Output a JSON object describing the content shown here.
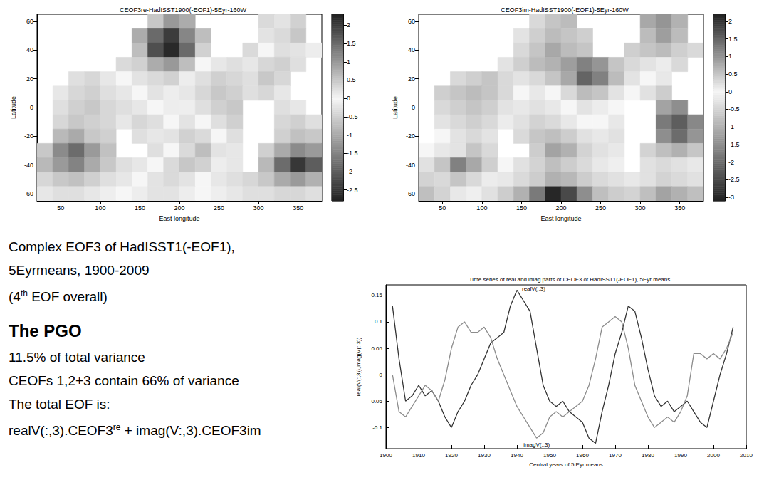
{
  "chart_data": [
    {
      "type": "heatmap",
      "title": "CEOF3re-HadISST1900(-EOF1)-5Eyr-160W",
      "xlabel": "East longitude",
      "ylabel": "Latitude",
      "x": [
        30,
        50,
        70,
        90,
        110,
        130,
        150,
        170,
        190,
        210,
        230,
        250,
        270,
        290,
        310,
        330,
        350,
        370
      ],
      "y": [
        60,
        50,
        40,
        30,
        20,
        10,
        0,
        -10,
        -20,
        -30,
        -40,
        -50,
        -60
      ],
      "cells": [
        [
          null,
          null,
          null,
          null,
          null,
          null,
          null,
          0.5,
          1.0,
          0.8,
          null,
          null,
          null,
          null,
          0.3,
          0.2,
          0.4,
          null
        ],
        [
          null,
          null,
          null,
          null,
          null,
          null,
          0.8,
          1.5,
          2.0,
          1.2,
          0.6,
          null,
          null,
          null,
          0.2,
          0.3,
          0.5,
          null
        ],
        [
          null,
          null,
          null,
          null,
          null,
          null,
          0.6,
          1.8,
          2.2,
          1.5,
          0.4,
          null,
          null,
          0.3,
          0.0,
          -0.3,
          0.2,
          0.1
        ],
        [
          null,
          null,
          null,
          null,
          null,
          0.3,
          0.4,
          0.8,
          1.0,
          0.6,
          0.0,
          -0.2,
          -0.3,
          -0.2,
          -0.4,
          -0.5,
          -0.3,
          null
        ],
        [
          null,
          null,
          -0.3,
          -0.4,
          -0.2,
          0.0,
          0.2,
          0.3,
          0.4,
          0.1,
          -0.3,
          -0.5,
          -0.4,
          -0.3,
          -0.6,
          -0.4,
          null,
          null
        ],
        [
          null,
          -0.2,
          -0.4,
          -0.5,
          -0.3,
          -0.2,
          0.0,
          0.2,
          0.1,
          -0.2,
          -0.4,
          -0.6,
          -0.5,
          -0.3,
          -0.4,
          -0.2,
          null,
          null
        ],
        [
          null,
          -0.3,
          -0.5,
          -0.6,
          -0.4,
          -0.3,
          -0.2,
          0.0,
          0.1,
          -0.1,
          -0.3,
          -0.5,
          -0.6,
          null,
          null,
          -0.3,
          -0.2,
          null
        ],
        [
          null,
          -0.4,
          -0.6,
          -0.5,
          -0.4,
          -0.2,
          -0.4,
          -0.3,
          0.0,
          0.2,
          0.0,
          -0.3,
          -0.5,
          null,
          null,
          -0.4,
          -0.5,
          -0.3
        ],
        [
          null,
          -0.8,
          -1.0,
          -0.6,
          -0.5,
          null,
          -0.3,
          -0.2,
          0.2,
          0.4,
          0.3,
          0.0,
          -0.3,
          null,
          null,
          -0.5,
          -0.7,
          -0.6
        ],
        [
          -0.6,
          -1.4,
          -1.8,
          -1.2,
          -0.7,
          null,
          null,
          -0.3,
          0.0,
          0.3,
          0.6,
          0.2,
          -0.2,
          null,
          -0.5,
          -1.0,
          -1.4,
          -1.2
        ],
        [
          -0.8,
          -1.2,
          -1.5,
          -1.0,
          -0.6,
          -0.3,
          -0.2,
          0.0,
          0.3,
          0.5,
          0.4,
          0.1,
          -0.2,
          null,
          -0.8,
          -1.8,
          -2.5,
          -2.0
        ],
        [
          -0.4,
          -0.6,
          -0.7,
          -0.5,
          -0.3,
          -0.2,
          0.0,
          0.2,
          0.3,
          0.2,
          0.0,
          -0.2,
          -0.3,
          -0.4,
          -0.6,
          -1.0,
          -1.2,
          -0.9
        ],
        [
          -0.2,
          -0.3,
          -0.3,
          -0.2,
          -0.1,
          0.0,
          0.1,
          0.2,
          0.2,
          0.1,
          0.0,
          -0.1,
          -0.2,
          -0.3,
          -0.3,
          -0.4,
          -0.4,
          -0.3
        ]
      ],
      "xlim": [
        20,
        380
      ],
      "xticks": [
        50,
        100,
        150,
        200,
        250,
        300,
        350
      ],
      "ylim": [
        -65,
        65
      ],
      "yticks": [
        -60,
        -40,
        -20,
        0,
        20,
        40,
        60
      ],
      "colorbar_range": [
        -2.8,
        2.3
      ],
      "colorbar_ticks": [
        -2.5,
        -2,
        -1.5,
        -1,
        -0.5,
        0,
        0.5,
        1,
        1.5,
        2
      ]
    },
    {
      "type": "heatmap",
      "title": "CEOF3im-HadISST1900(-EOF1)-5Eyr-160W",
      "xlabel": "East longitude",
      "ylabel": "Latitude",
      "x": [
        30,
        50,
        70,
        90,
        110,
        130,
        150,
        170,
        190,
        210,
        230,
        250,
        270,
        290,
        310,
        330,
        350,
        370
      ],
      "y": [
        60,
        50,
        40,
        30,
        20,
        10,
        0,
        -10,
        -20,
        -30,
        -40,
        -50,
        -60
      ],
      "cells": [
        [
          null,
          null,
          null,
          null,
          null,
          null,
          null,
          0.3,
          0.5,
          0.6,
          null,
          null,
          null,
          null,
          0.8,
          1.0,
          0.7,
          null
        ],
        [
          null,
          null,
          null,
          null,
          null,
          null,
          0.2,
          0.4,
          0.6,
          0.5,
          0.4,
          null,
          null,
          null,
          0.6,
          0.9,
          0.6,
          null
        ],
        [
          null,
          null,
          null,
          null,
          null,
          null,
          0.3,
          0.5,
          0.8,
          0.6,
          0.5,
          null,
          null,
          0.4,
          0.5,
          0.6,
          0.4,
          0.3
        ],
        [
          null,
          null,
          null,
          null,
          null,
          0.2,
          0.4,
          0.6,
          0.7,
          0.9,
          1.2,
          1.0,
          0.5,
          0.3,
          0.2,
          0.1,
          0.3,
          null
        ],
        [
          null,
          null,
          0.3,
          0.4,
          0.5,
          0.3,
          0.2,
          0.3,
          0.5,
          0.8,
          1.5,
          1.2,
          0.6,
          0.2,
          0.0,
          -0.2,
          null,
          null
        ],
        [
          null,
          0.4,
          0.5,
          0.6,
          0.5,
          0.3,
          0.0,
          -0.2,
          0.0,
          0.3,
          0.6,
          0.5,
          0.2,
          0.0,
          -0.3,
          -0.6,
          null,
          null
        ],
        [
          null,
          0.3,
          0.4,
          0.5,
          0.4,
          0.2,
          -0.2,
          -0.3,
          -0.2,
          0.0,
          0.2,
          0.1,
          0.0,
          null,
          null,
          -1.2,
          -1.5,
          null
        ],
        [
          null,
          0.2,
          0.3,
          0.4,
          0.3,
          0.1,
          -0.3,
          -0.5,
          -0.4,
          -0.2,
          0.0,
          0.0,
          -0.2,
          null,
          null,
          -1.8,
          -2.2,
          -1.6
        ],
        [
          null,
          0.0,
          0.2,
          0.3,
          0.2,
          null,
          -0.4,
          -0.7,
          -0.8,
          -0.6,
          -0.3,
          -0.2,
          -0.3,
          null,
          null,
          -1.5,
          -2.0,
          -1.4
        ],
        [
          0.0,
          -0.2,
          0.2,
          0.5,
          0.3,
          null,
          null,
          -0.6,
          -1.2,
          -1.0,
          -0.5,
          -0.3,
          -0.2,
          null,
          -0.5,
          -0.8,
          -1.0,
          -0.7
        ],
        [
          -0.3,
          0.5,
          1.2,
          0.8,
          0.4,
          0.0,
          -0.3,
          -0.5,
          -0.8,
          -0.6,
          -0.4,
          -0.2,
          -0.1,
          null,
          -0.3,
          -0.4,
          -0.3,
          -0.2
        ],
        [
          -0.5,
          0.3,
          0.5,
          0.3,
          0.1,
          -0.2,
          -0.4,
          -0.6,
          -1.0,
          -0.9,
          -0.6,
          -0.4,
          -0.3,
          -0.2,
          -0.3,
          -0.5,
          -0.4,
          -0.3
        ],
        [
          -0.8,
          -0.5,
          -0.2,
          -0.1,
          -0.3,
          -0.6,
          -1.0,
          -1.8,
          -3.0,
          -2.5,
          -1.5,
          -0.8,
          -0.6,
          -0.5,
          -0.8,
          -1.2,
          -1.0,
          -0.8
        ]
      ],
      "xlim": [
        20,
        380
      ],
      "xticks": [
        50,
        100,
        150,
        200,
        250,
        300,
        350
      ],
      "ylim": [
        -65,
        65
      ],
      "yticks": [
        -60,
        -40,
        -20,
        0,
        20,
        40,
        60
      ],
      "colorbar_range": [
        -3.1,
        2.2
      ],
      "colorbar_ticks": [
        -3,
        -2.5,
        -2,
        -1.5,
        -1,
        -0.5,
        0,
        0.5,
        1,
        1.5,
        2
      ]
    },
    {
      "type": "line",
      "title": "Time series of real and imag parts of CEOF3 of HadISST1(-EOF1), 5Eyr means",
      "xlabel": "Central years of 5 Eyr means",
      "ylabel": "real(V(:,3)),imag(V(:,3))",
      "x": [
        1902,
        1904,
        1906,
        1908,
        1910,
        1912,
        1914,
        1916,
        1918,
        1920,
        1922,
        1924,
        1926,
        1928,
        1930,
        1932,
        1934,
        1936,
        1938,
        1940,
        1942,
        1944,
        1946,
        1948,
        1950,
        1952,
        1954,
        1956,
        1958,
        1960,
        1962,
        1964,
        1966,
        1968,
        1970,
        1972,
        1974,
        1976,
        1978,
        1980,
        1982,
        1984,
        1986,
        1988,
        1990,
        1992,
        1994,
        1996,
        1998,
        2000,
        2002,
        2004,
        2006
      ],
      "series": [
        {
          "name": "realV(:,3)",
          "color": "#333333",
          "values": [
            0.13,
            0.03,
            -0.05,
            -0.04,
            -0.02,
            -0.04,
            -0.03,
            -0.05,
            -0.08,
            -0.1,
            -0.07,
            -0.05,
            -0.02,
            0.0,
            0.03,
            0.06,
            0.07,
            0.08,
            0.13,
            0.16,
            0.14,
            0.12,
            0.05,
            -0.02,
            -0.05,
            -0.06,
            -0.05,
            -0.07,
            -0.08,
            -0.09,
            -0.12,
            -0.13,
            -0.07,
            -0.02,
            0.04,
            0.08,
            0.13,
            0.12,
            0.07,
            0.01,
            -0.04,
            -0.06,
            -0.05,
            -0.07,
            -0.06,
            -0.05,
            -0.07,
            -0.09,
            -0.1,
            -0.05,
            0.0,
            0.04,
            0.09
          ]
        },
        {
          "name": "imagV(:,3)",
          "color": "#8c8c8c",
          "values": [
            0.0,
            -0.07,
            -0.08,
            -0.06,
            -0.04,
            -0.02,
            -0.03,
            -0.05,
            -0.01,
            0.05,
            0.09,
            0.1,
            0.08,
            0.08,
            0.09,
            0.07,
            0.03,
            0.0,
            -0.03,
            -0.06,
            -0.08,
            -0.1,
            -0.12,
            -0.11,
            -0.08,
            -0.07,
            -0.08,
            -0.07,
            -0.06,
            -0.05,
            -0.02,
            0.03,
            0.09,
            0.1,
            0.11,
            0.1,
            0.05,
            -0.02,
            -0.05,
            -0.08,
            -0.1,
            -0.09,
            -0.08,
            -0.09,
            -0.07,
            -0.04,
            0.04,
            0.04,
            0.03,
            0.04,
            0.03,
            0.05,
            0.08
          ]
        }
      ],
      "xlim": [
        1900,
        2010
      ],
      "xticks": [
        1900,
        1910,
        1920,
        1930,
        1940,
        1950,
        1960,
        1970,
        1980,
        1990,
        2000,
        2010
      ],
      "ylim": [
        -0.14,
        0.17
      ],
      "yticks": [
        -0.1,
        -0.05,
        0,
        0.05,
        0.1,
        0.15
      ],
      "reference_line": 0
    }
  ],
  "text_panel": {
    "caption": [
      "Complex EOF3 of HadISST1(-EOF1),",
      "5Eyrmeans, 1900-2009",
      "(4th EOF overall)"
    ],
    "heading": "The PGO",
    "notes": [
      "11.5% of total variance",
      "CEOFs 1,2+3 contain 66% of variance",
      "The total EOF is:",
      "realV(:,3).CEOF3re + imag(V:,3).CEOF3im"
    ]
  }
}
